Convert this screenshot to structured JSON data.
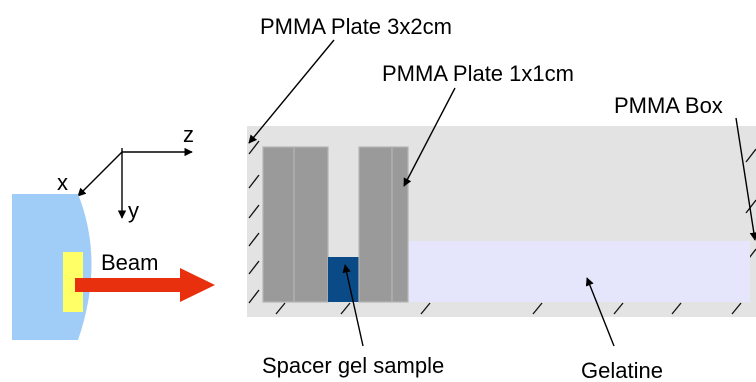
{
  "labels": {
    "plate_3x2": "PMMA Plate 3x2cm",
    "plate_1x1": "PMMA Plate 1x1cm",
    "box": "PMMA Box",
    "spacer": "Spacer gel sample",
    "gelatine": "Gelatine",
    "beam": "Beam"
  },
  "axes": {
    "x": "x",
    "y": "y",
    "z": "z"
  },
  "colors": {
    "box_fill": "#e3e3e3",
    "plate_fill": "#9a9a9a",
    "plate_border": "#b5b5b5",
    "spacer_fill": "#0a4a86",
    "gelatine_fill": "#e5e6fb",
    "source_fill": "#9fcdf7",
    "source_window": "#ffff66",
    "beam_arrow": "#e8300e"
  }
}
